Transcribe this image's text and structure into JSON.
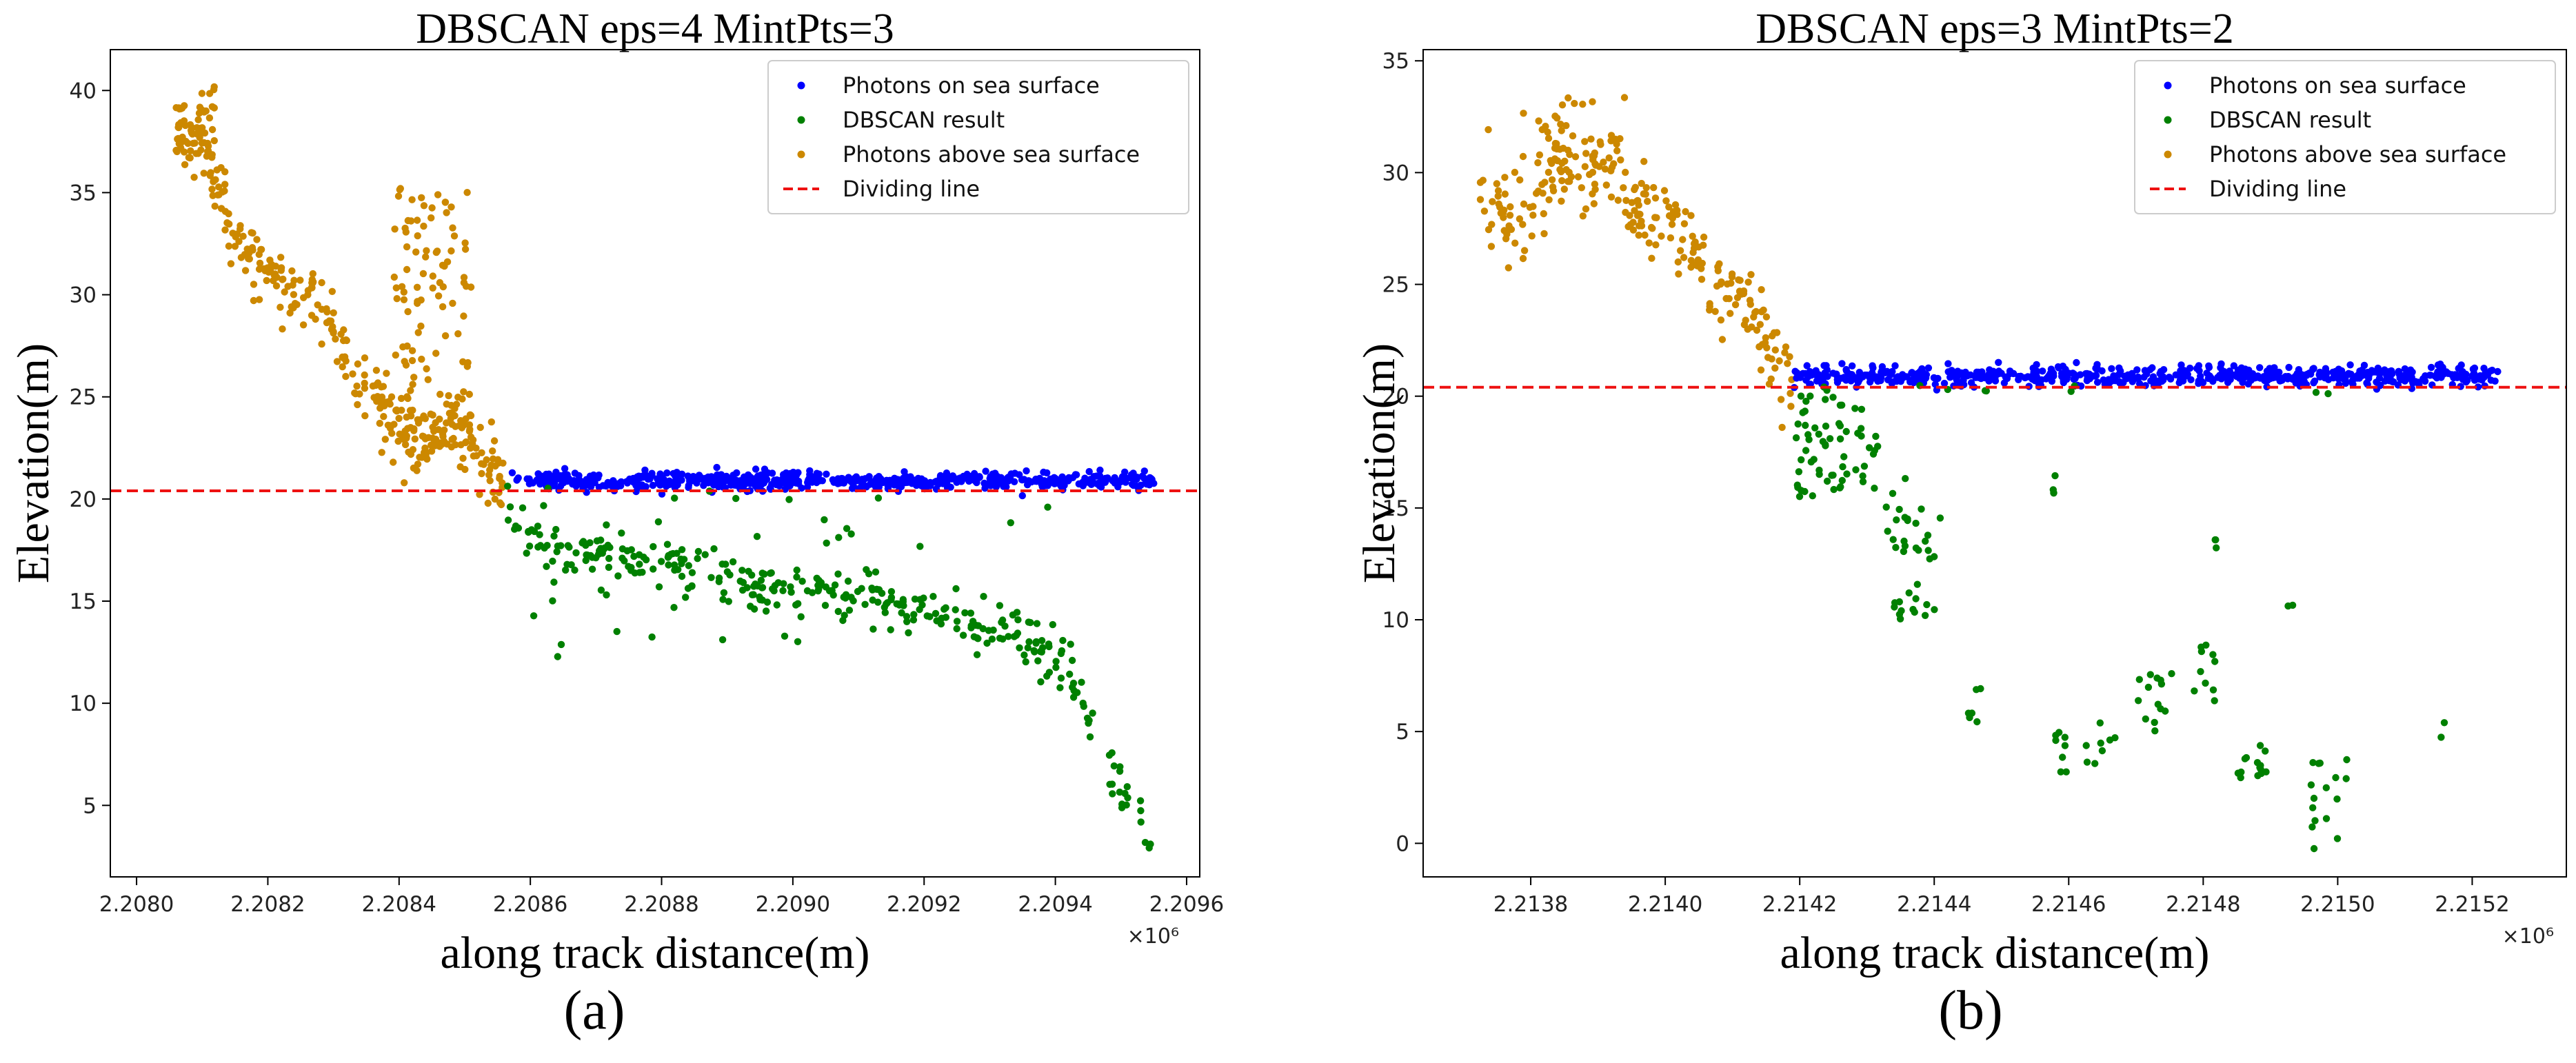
{
  "chart_data": [
    {
      "type": "scatter",
      "title": "DBSCAN eps=4 MintPts=3",
      "xlabel": "along track distance(m)",
      "ylabel": "Elevation(m)",
      "x_multiplier_label": "×10⁶",
      "xlim": [
        2.20796,
        2.20962
      ],
      "ylim": [
        1.5,
        42.0
      ],
      "xticks": [
        2.208,
        2.2082,
        2.2084,
        2.2086,
        2.2088,
        2.209,
        2.2092,
        2.2094,
        2.2096
      ],
      "xtick_labels": [
        "2.2080",
        "2.2082",
        "2.2084",
        "2.2086",
        "2.2088",
        "2.2090",
        "2.2092",
        "2.2094",
        "2.2096"
      ],
      "yticks": [
        5,
        10,
        15,
        20,
        25,
        30,
        35,
        40
      ],
      "ytick_labels": [
        "5",
        "10",
        "15",
        "20",
        "25",
        "30",
        "35",
        "40"
      ],
      "dividing_line_y": 20.4,
      "caption": "(a)",
      "legend_position": "upper right",
      "legend": [
        {
          "label": "Photons on sea surface",
          "color": "#0000ff",
          "kind": "dot"
        },
        {
          "label": "DBSCAN result",
          "color": "#008000",
          "kind": "dot"
        },
        {
          "label": "Photons above sea surface",
          "color": "#cc8800",
          "kind": "dot"
        },
        {
          "label": "Dividing line",
          "color": "#ee1111",
          "kind": "dash"
        }
      ],
      "series": [
        {
          "name": "Photons above sea surface",
          "color": "#cc8800",
          "profile": [
            [
              2.20806,
              37.5
            ],
            [
              2.20808,
              38.3
            ],
            [
              2.2081,
              37.0
            ],
            [
              2.20812,
              35.6
            ],
            [
              2.20814,
              34.0
            ],
            [
              2.20816,
              32.8
            ],
            [
              2.20818,
              31.8
            ],
            [
              2.2082,
              31.0
            ],
            [
              2.20822,
              30.0
            ],
            [
              2.20824,
              29.7
            ],
            [
              2.20826,
              30.0
            ],
            [
              2.20828,
              29.6
            ],
            [
              2.2083,
              28.0
            ],
            [
              2.20832,
              26.8
            ],
            [
              2.20834,
              25.6
            ],
            [
              2.20836,
              25.1
            ],
            [
              2.20838,
              24.4
            ],
            [
              2.2084,
              23.6
            ],
            [
              2.20842,
              23.1
            ],
            [
              2.20844,
              23.0
            ],
            [
              2.20846,
              23.1
            ],
            [
              2.20848,
              23.8
            ],
            [
              2.2085,
              23.4
            ],
            [
              2.20852,
              22.4
            ],
            [
              2.20854,
              21.3
            ],
            [
              2.20856,
              20.8
            ]
          ],
          "scatter": 0.9,
          "count": 330,
          "spikes": [
            {
              "x0": 2.20839,
              "x1": 2.20851,
              "ylo": 22.0,
              "yhi": 35.3,
              "count": 110
            },
            {
              "x0": 2.20806,
              "x1": 2.20812,
              "ylo": 36.5,
              "yhi": 40.5,
              "count": 30
            }
          ]
        },
        {
          "name": "Photons on sea surface",
          "color": "#0000ff",
          "profile": [
            [
              2.20856,
              20.9
            ],
            [
              2.20955,
              20.9
            ]
          ],
          "scatter": 0.22,
          "count": 600,
          "spikes": []
        },
        {
          "name": "DBSCAN result",
          "color": "#008000",
          "profile": [
            [
              2.20856,
              20.0
            ],
            [
              2.2086,
              18.2
            ],
            [
              2.20866,
              17.6
            ],
            [
              2.20874,
              17.0
            ],
            [
              2.20882,
              16.8
            ],
            [
              2.2089,
              16.2
            ],
            [
              2.209,
              15.6
            ],
            [
              2.2091,
              15.3
            ],
            [
              2.20918,
              14.8
            ],
            [
              2.20926,
              14.0
            ],
            [
              2.20932,
              13.5
            ],
            [
              2.20938,
              12.5
            ],
            [
              2.20942,
              11.5
            ],
            [
              2.20945,
              9.5
            ],
            [
              2.20948,
              7.0
            ],
            [
              2.2095,
              5.8
            ],
            [
              2.20953,
              4.5
            ],
            [
              2.20955,
              3.0
            ]
          ],
          "scatter": 0.6,
          "count": 320,
          "spikes": [
            {
              "x0": 2.2086,
              "x1": 2.2094,
              "ylo": 12.0,
              "yhi": 20.6,
              "count": 45
            }
          ]
        }
      ]
    },
    {
      "type": "scatter",
      "title": "DBSCAN eps=3 MintPts=2",
      "xlabel": "along track distance(m)",
      "ylabel": "Elevation(m)",
      "x_multiplier_label": "×10⁶",
      "xlim": [
        2.21364,
        2.21534
      ],
      "ylim": [
        -1.5,
        35.5
      ],
      "xticks": [
        2.2138,
        2.214,
        2.2142,
        2.2144,
        2.2146,
        2.2148,
        2.215,
        2.2152
      ],
      "xtick_labels": [
        "2.2138",
        "2.2140",
        "2.2142",
        "2.2144",
        "2.2146",
        "2.2148",
        "2.2150",
        "2.2152"
      ],
      "yticks": [
        0,
        5,
        10,
        15,
        20,
        25,
        30,
        35
      ],
      "ytick_labels": [
        "0",
        "5",
        "10",
        "15",
        "20",
        "25",
        "30",
        "35"
      ],
      "dividing_line_y": 20.4,
      "caption": "(b)",
      "legend_position": "upper right",
      "legend": [
        {
          "label": "Photons on sea surface",
          "color": "#0000ff",
          "kind": "dot"
        },
        {
          "label": "DBSCAN result",
          "color": "#008000",
          "kind": "dot"
        },
        {
          "label": "Photons above sea surface",
          "color": "#cc8800",
          "kind": "dot"
        },
        {
          "label": "Dividing line",
          "color": "#ee1111",
          "kind": "dash"
        }
      ],
      "series": [
        {
          "name": "Photons above sea surface",
          "color": "#cc8800",
          "profile": [
            [
              2.21372,
              29.6
            ],
            [
              2.21374,
              29.0
            ],
            [
              2.21376,
              28.0
            ],
            [
              2.21378,
              27.4
            ],
            [
              2.2138,
              28.6
            ],
            [
              2.21382,
              29.8
            ],
            [
              2.21384,
              30.5
            ],
            [
              2.21386,
              30.5
            ],
            [
              2.21388,
              30.0
            ],
            [
              2.2139,
              30.2
            ],
            [
              2.21392,
              30.6
            ],
            [
              2.21394,
              29.5
            ],
            [
              2.21396,
              28.2
            ],
            [
              2.21398,
              28.6
            ],
            [
              2.214,
              28.0
            ],
            [
              2.21402,
              27.2
            ],
            [
              2.21404,
              26.5
            ],
            [
              2.21406,
              25.5
            ],
            [
              2.21408,
              24.7
            ],
            [
              2.2141,
              24.5
            ],
            [
              2.21412,
              24.6
            ],
            [
              2.21414,
              23.0
            ],
            [
              2.21416,
              21.4
            ],
            [
              2.21419,
              20.7
            ]
          ],
          "scatter": 1.0,
          "count": 260,
          "spikes": [
            {
              "x0": 2.21378,
              "x1": 2.21394,
              "ylo": 30.0,
              "yhi": 33.5,
              "count": 25
            }
          ]
        },
        {
          "name": "Photons on sea surface",
          "color": "#0000ff",
          "profile": [
            [
              2.21419,
              20.9
            ],
            [
              2.21524,
              20.9
            ]
          ],
          "scatter": 0.22,
          "count": 620,
          "spikes": []
        },
        {
          "name": "DBSCAN result",
          "color": "#008000",
          "profile": [],
          "scatter": 0.6,
          "count": 0,
          "spikes": [
            {
              "x0": 2.21419,
              "x1": 2.21426,
              "ylo": 15.5,
              "yhi": 20.5,
              "count": 40
            },
            {
              "x0": 2.21426,
              "x1": 2.21432,
              "ylo": 15.5,
              "yhi": 20.0,
              "count": 25
            },
            {
              "x0": 2.21432,
              "x1": 2.21436,
              "ylo": 12.5,
              "yhi": 17.0,
              "count": 8
            },
            {
              "x0": 2.21434,
              "x1": 2.21441,
              "ylo": 10.0,
              "yhi": 15.0,
              "count": 30
            },
            {
              "x0": 2.21445,
              "x1": 2.21447,
              "ylo": 5.3,
              "yhi": 7.0,
              "count": 6
            },
            {
              "x0": 2.21456,
              "x1": 2.21458,
              "ylo": 15.0,
              "yhi": 17.8,
              "count": 4
            },
            {
              "x0": 2.21457,
              "x1": 2.2146,
              "ylo": 2.8,
              "yhi": 5.0,
              "count": 8
            },
            {
              "x0": 2.21462,
              "x1": 2.21467,
              "ylo": 3.0,
              "yhi": 5.5,
              "count": 8
            },
            {
              "x0": 2.2147,
              "x1": 2.21476,
              "ylo": 5.0,
              "yhi": 8.0,
              "count": 14
            },
            {
              "x0": 2.21478,
              "x1": 2.21482,
              "ylo": 6.0,
              "yhi": 9.0,
              "count": 10
            },
            {
              "x0": 2.21481,
              "x1": 2.21482,
              "ylo": 13.0,
              "yhi": 13.8,
              "count": 3
            },
            {
              "x0": 2.21485,
              "x1": 2.2149,
              "ylo": 2.8,
              "yhi": 4.5,
              "count": 14
            },
            {
              "x0": 2.21492,
              "x1": 2.21494,
              "ylo": 10.3,
              "yhi": 10.7,
              "count": 2
            },
            {
              "x0": 2.21495,
              "x1": 2.21502,
              "ylo": -0.3,
              "yhi": 3.8,
              "count": 16
            },
            {
              "x0": 2.21515,
              "x1": 2.21517,
              "ylo": 3.5,
              "yhi": 6.4,
              "count": 2
            },
            {
              "x0": 2.21432,
              "x1": 2.215,
              "ylo": 20.0,
              "yhi": 20.5,
              "count": 8
            }
          ]
        }
      ]
    }
  ]
}
